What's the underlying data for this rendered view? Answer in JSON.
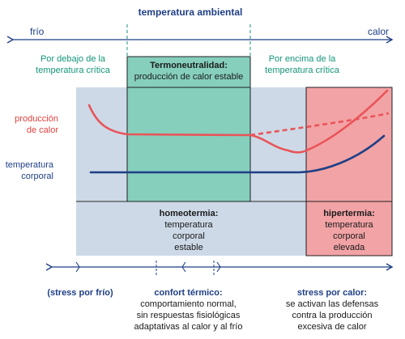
{
  "header": {
    "title": "temperatura ambiental",
    "left": "frío",
    "right": "calor"
  },
  "zones": {
    "below": {
      "line1": "Por debajo de la",
      "line2": "temperatura crítica"
    },
    "neutral": {
      "title": "Termoneutralidad:",
      "subtitle": "producción de calor estable"
    },
    "above": {
      "line1": "Por encima de la",
      "line2": "temperatura crítica"
    }
  },
  "curves": {
    "heat_production": {
      "line1": "producción",
      "line2": "de calor"
    },
    "body_temperature": {
      "line1": "temperatura",
      "line2": "corporal"
    }
  },
  "states": {
    "homeothermy": {
      "title": "homeotermia:",
      "line1": "temperatura",
      "line2": "corporal",
      "line3": "estable"
    },
    "hyperthermia": {
      "title": "hipertermia:",
      "line1": "temperatura",
      "line2": "corporal",
      "line3": "elevada"
    }
  },
  "bottom": {
    "cold_stress": "(stress por frío)",
    "comfort": {
      "title": "confort térmico:",
      "line1": "comportamiento normal,",
      "line2": "sin respuestas fisiológicas",
      "line3": "adaptativas al calor y al frío"
    },
    "heat_stress": {
      "title": "stress por calor:",
      "line1": "se activan las defensas",
      "line2": "contra la producción",
      "line3": "excesiva de calor"
    }
  },
  "colors": {
    "panel": "#cdd9e7",
    "neutral_zone": "#86cfbd",
    "hyperthermia_zone": "#f2a3a5",
    "heat_curve": "#e95459",
    "body_curve": "#1f3f86",
    "text_blue": "#1f3f86",
    "text_teal": "#14957a",
    "text_red": "#e0413f"
  }
}
